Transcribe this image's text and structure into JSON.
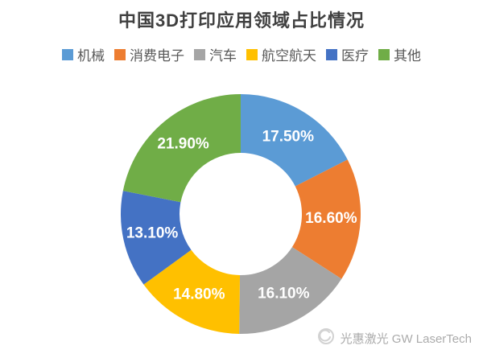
{
  "chart_data": {
    "type": "pie",
    "donut": true,
    "title": "中国3D打印应用领域占比情况",
    "categories": [
      "机械",
      "消费电子",
      "汽车",
      "航空航天",
      "医疗",
      "其他"
    ],
    "category_slugs": [
      "machinery",
      "consumer-electronics",
      "automotive",
      "aerospace",
      "medical",
      "other"
    ],
    "values": [
      17.5,
      16.6,
      16.1,
      14.8,
      13.1,
      21.9
    ],
    "labels": [
      "17.50%",
      "16.60%",
      "16.10%",
      "14.80%",
      "13.10%",
      "21.90%"
    ],
    "colors": [
      "#5B9BD5",
      "#ED7D31",
      "#A5A5A5",
      "#FFC000",
      "#4472C4",
      "#70AD47"
    ],
    "start_angle_deg": -90,
    "direction": "clockwise",
    "inner_radius_ratio": 0.51,
    "legend_position": "top",
    "label_color": "#FFFFFF",
    "title_color": "#404040",
    "legend_text_color": "#595959",
    "background": "#FFFFFF"
  },
  "footer": {
    "watermark": "光惠激光 GW LaserTech",
    "color": "#ABABAB"
  }
}
